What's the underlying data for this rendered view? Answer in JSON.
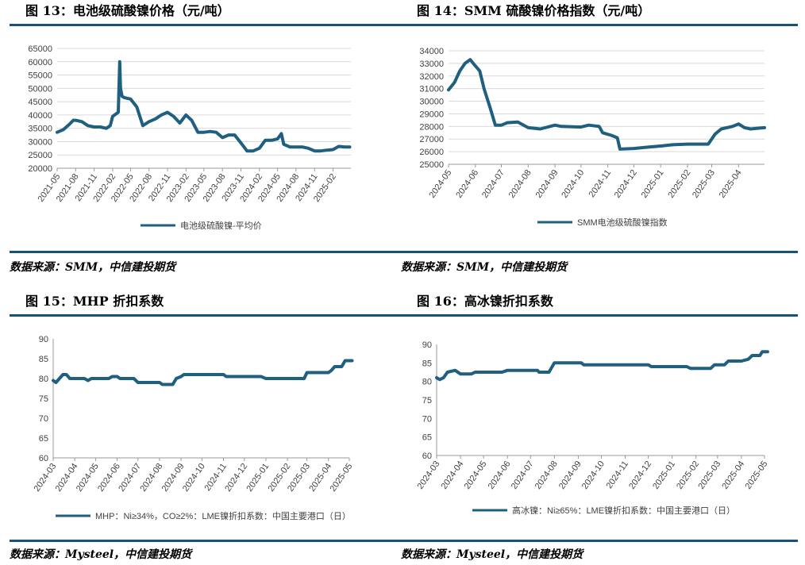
{
  "colors": {
    "accent": "#1a5276",
    "line": "#1f5f7f",
    "grid": "#d9d9d9"
  },
  "panels": [
    {
      "title": "图 13：电池级硫酸镍价格（元/吨）",
      "source": "数据来源：SMM，中信建投期货",
      "chart_data": {
        "type": "line",
        "title": "",
        "xlabel": "",
        "ylabel": "",
        "ylim": [
          20000,
          65000
        ],
        "yticks": [
          20000,
          25000,
          30000,
          35000,
          40000,
          45000,
          50000,
          55000,
          60000,
          65000
        ],
        "xlim": [
          "2021-05",
          "2025-05"
        ],
        "xticks": [
          "2021-05",
          "2021-08",
          "2021-11",
          "2022-02",
          "2022-05",
          "2022-08",
          "2022-11",
          "2023-02",
          "2023-05",
          "2023-08",
          "2023-11",
          "2024-02",
          "2024-05",
          "2024-08",
          "2024-11",
          "2025-02"
        ],
        "grid": true,
        "legend": "bottom",
        "series": [
          {
            "name": "电池级硫酸镍-平均价",
            "points": [
              [
                "2021-05",
                33500
              ],
              [
                "2021-06",
                34500
              ],
              [
                "2021-07",
                36500
              ],
              [
                "2021-07-20",
                38000
              ],
              [
                "2021-08",
                38000
              ],
              [
                "2021-09",
                37500
              ],
              [
                "2021-10",
                36000
              ],
              [
                "2021-11",
                35500
              ],
              [
                "2021-12",
                35500
              ],
              [
                "2022-01",
                35000
              ],
              [
                "2022-01-20",
                36000
              ],
              [
                "2022-02",
                39500
              ],
              [
                "2022-03",
                41000
              ],
              [
                "2022-03-08",
                60000
              ],
              [
                "2022-03-12",
                50000
              ],
              [
                "2022-03-20",
                47000
              ],
              [
                "2022-04",
                46500
              ],
              [
                "2022-05",
                46000
              ],
              [
                "2022-06",
                43000
              ],
              [
                "2022-07",
                36000
              ],
              [
                "2022-08",
                37500
              ],
              [
                "2022-09",
                38500
              ],
              [
                "2022-10",
                40000
              ],
              [
                "2022-11",
                41000
              ],
              [
                "2022-12",
                39500
              ],
              [
                "2023-01",
                37000
              ],
              [
                "2023-02",
                40000
              ],
              [
                "2023-03",
                38000
              ],
              [
                "2023-04",
                33500
              ],
              [
                "2023-05",
                33500
              ],
              [
                "2023-06",
                33800
              ],
              [
                "2023-07",
                33500
              ],
              [
                "2023-08",
                31500
              ],
              [
                "2023-09",
                32500
              ],
              [
                "2023-10",
                32500
              ],
              [
                "2023-11",
                29500
              ],
              [
                "2023-12",
                26500
              ],
              [
                "2024-01",
                26500
              ],
              [
                "2024-02",
                27500
              ],
              [
                "2024-03",
                30500
              ],
              [
                "2024-04",
                30500
              ],
              [
                "2024-05",
                31000
              ],
              [
                "2024-05-20",
                33000
              ],
              [
                "2024-06",
                29000
              ],
              [
                "2024-07",
                28000
              ],
              [
                "2024-08",
                28000
              ],
              [
                "2024-09",
                28000
              ],
              [
                "2024-10",
                27500
              ],
              [
                "2024-11",
                26500
              ],
              [
                "2024-12",
                26500
              ],
              [
                "2025-01",
                26800
              ],
              [
                "2025-02",
                27000
              ],
              [
                "2025-03",
                28200
              ],
              [
                "2025-04",
                28000
              ],
              [
                "2025-04-25",
                28000
              ]
            ]
          }
        ]
      }
    },
    {
      "title": "图 14：SMM 硫酸镍价格指数（元/吨）",
      "source": "数据来源：SMM，中信建投期货",
      "chart_data": {
        "type": "line",
        "title": "",
        "xlabel": "",
        "ylabel": "",
        "ylim": [
          25000,
          34000
        ],
        "yticks": [
          25000,
          26000,
          27000,
          28000,
          29000,
          30000,
          31000,
          32000,
          33000,
          34000
        ],
        "xlim": [
          "2024-05",
          "2025-05"
        ],
        "xticks": [
          "2024-05",
          "2024-06",
          "2024-07",
          "2024-08",
          "2024-09",
          "2024-10",
          "2024-11",
          "2024-12",
          "2025-01",
          "2025-02",
          "2025-03",
          "2025-04"
        ],
        "grid": true,
        "legend": "bottom",
        "series": [
          {
            "name": "SMM电池级硫酸镍指数",
            "points": [
              [
                "2024-05-01",
                30900
              ],
              [
                "2024-05-08",
                31500
              ],
              [
                "2024-05-14",
                32400
              ],
              [
                "2024-05-20",
                33000
              ],
              [
                "2024-05-26",
                33300
              ],
              [
                "2024-06-01",
                32800
              ],
              [
                "2024-06-06",
                32400
              ],
              [
                "2024-06-11",
                31000
              ],
              [
                "2024-06-18",
                29500
              ],
              [
                "2024-06-24",
                28100
              ],
              [
                "2024-07-01",
                28100
              ],
              [
                "2024-07-08",
                28300
              ],
              [
                "2024-07-20",
                28350
              ],
              [
                "2024-08-01",
                27900
              ],
              [
                "2024-08-15",
                27800
              ],
              [
                "2024-09-01",
                28100
              ],
              [
                "2024-09-08",
                28000
              ],
              [
                "2024-10-01",
                27950
              ],
              [
                "2024-10-10",
                28100
              ],
              [
                "2024-10-22",
                28000
              ],
              [
                "2024-10-26",
                27500
              ],
              [
                "2024-11-05",
                27300
              ],
              [
                "2024-11-12",
                27100
              ],
              [
                "2024-11-15",
                26200
              ],
              [
                "2024-12-01",
                26250
              ],
              [
                "2024-12-15",
                26350
              ],
              [
                "2025-01-01",
                26450
              ],
              [
                "2025-01-15",
                26550
              ],
              [
                "2025-02-01",
                26600
              ],
              [
                "2025-02-25",
                26600
              ],
              [
                "2025-03-05",
                27400
              ],
              [
                "2025-03-12",
                27800
              ],
              [
                "2025-03-25",
                28000
              ],
              [
                "2025-04-01",
                28200
              ],
              [
                "2025-04-08",
                27900
              ],
              [
                "2025-04-15",
                27800
              ],
              [
                "2025-04-22",
                27850
              ],
              [
                "2025-05-01",
                27900
              ]
            ]
          }
        ]
      }
    },
    {
      "title": "图 15：MHP 折扣系数",
      "source": "数据来源：Mysteel，中信建投期货",
      "chart_data": {
        "type": "line",
        "title": "",
        "xlabel": "",
        "ylabel": "",
        "ylim": [
          60,
          90
        ],
        "yticks": [
          60,
          65,
          70,
          75,
          80,
          85,
          90
        ],
        "xlim": [
          "2024-03",
          "2025-05"
        ],
        "xticks": [
          "2024-03",
          "2024-04",
          "2024-05",
          "2024-06",
          "2024-07",
          "2024-08",
          "2024-09",
          "2024-10",
          "2024-11",
          "2024-12",
          "2025-01",
          "2025-02",
          "2025-03",
          "2025-04",
          "2025-05"
        ],
        "grid": false,
        "legend": "bottom",
        "series": [
          {
            "name": "MHP：Ni≥34%，CO≥2%：LME镍折扣系数：中国主要港口（日）",
            "points": [
              [
                "2024-03-01",
                79.5
              ],
              [
                "2024-03-05",
                79
              ],
              [
                "2024-03-10",
                80
              ],
              [
                "2024-03-15",
                81
              ],
              [
                "2024-03-20",
                81
              ],
              [
                "2024-03-25",
                80
              ],
              [
                "2024-04-15",
                80
              ],
              [
                "2024-04-20",
                79.5
              ],
              [
                "2024-04-25",
                80
              ],
              [
                "2024-05-20",
                80
              ],
              [
                "2024-05-25",
                80.5
              ],
              [
                "2024-06-01",
                80.5
              ],
              [
                "2024-06-05",
                80
              ],
              [
                "2024-06-25",
                80
              ],
              [
                "2024-07-01",
                79
              ],
              [
                "2024-08-01",
                79
              ],
              [
                "2024-08-05",
                78.5
              ],
              [
                "2024-08-20",
                78.5
              ],
              [
                "2024-08-25",
                80
              ],
              [
                "2024-09-01",
                80.5
              ],
              [
                "2024-09-05",
                81
              ],
              [
                "2024-10-01",
                81
              ],
              [
                "2024-11-01",
                81
              ],
              [
                "2024-11-05",
                80.5
              ],
              [
                "2024-12-01",
                80.5
              ],
              [
                "2024-12-25",
                80.5
              ],
              [
                "2025-01-01",
                80
              ],
              [
                "2025-02-01",
                80
              ],
              [
                "2025-02-25",
                80
              ],
              [
                "2025-03-01",
                81.5
              ],
              [
                "2025-04-01",
                81.5
              ],
              [
                "2025-04-05",
                82
              ],
              [
                "2025-04-10",
                83
              ],
              [
                "2025-04-20",
                83
              ],
              [
                "2025-04-25",
                84.5
              ],
              [
                "2025-05-05",
                84.5
              ]
            ]
          }
        ]
      }
    },
    {
      "title": "图 16：高冰镍折扣系数",
      "source": "数据来源：Mysteel，中信建投期货",
      "chart_data": {
        "type": "line",
        "title": "",
        "xlabel": "",
        "ylabel": "",
        "ylim": [
          60,
          90
        ],
        "yticks": [
          60,
          65,
          70,
          75,
          80,
          85,
          90
        ],
        "xlim": [
          "2024-03",
          "2025-05"
        ],
        "xticks": [
          "2024-03",
          "2024-04",
          "2024-05",
          "2024-06",
          "2024-07",
          "2024-08",
          "2024-09",
          "2024-10",
          "2024-11",
          "2024-12",
          "2025-01",
          "2025-02",
          "2025-03",
          "2025-04",
          "2025-05"
        ],
        "grid": false,
        "legend": "bottom",
        "series": [
          {
            "name": "高冰镍：Ni≥65%：LME镍折扣系数：中国主要港口（日）",
            "points": [
              [
                "2024-03-01",
                81
              ],
              [
                "2024-03-05",
                80.5
              ],
              [
                "2024-03-10",
                81
              ],
              [
                "2024-03-15",
                82.5
              ],
              [
                "2024-03-25",
                83
              ],
              [
                "2024-04-01",
                82
              ],
              [
                "2024-04-15",
                82
              ],
              [
                "2024-04-20",
                82.5
              ],
              [
                "2024-05-25",
                82.5
              ],
              [
                "2024-06-01",
                83
              ],
              [
                "2024-07-10",
                83
              ],
              [
                "2024-07-12",
                82.5
              ],
              [
                "2024-07-25",
                82.5
              ],
              [
                "2024-08-01",
                85
              ],
              [
                "2024-09-05",
                85
              ],
              [
                "2024-09-08",
                84.5
              ],
              [
                "2024-10-01",
                84.5
              ],
              [
                "2024-11-01",
                84.5
              ],
              [
                "2024-12-01",
                84.5
              ],
              [
                "2024-12-05",
                84
              ],
              [
                "2025-01-01",
                84
              ],
              [
                "2025-01-20",
                84
              ],
              [
                "2025-01-25",
                83.5
              ],
              [
                "2025-02-20",
                83.5
              ],
              [
                "2025-02-25",
                84.5
              ],
              [
                "2025-03-10",
                84.5
              ],
              [
                "2025-03-15",
                85.5
              ],
              [
                "2025-04-01",
                85.5
              ],
              [
                "2025-04-10",
                86
              ],
              [
                "2025-04-15",
                87
              ],
              [
                "2025-04-25",
                87
              ],
              [
                "2025-04-28",
                88
              ],
              [
                "2025-05-05",
                88
              ]
            ]
          }
        ]
      }
    }
  ]
}
